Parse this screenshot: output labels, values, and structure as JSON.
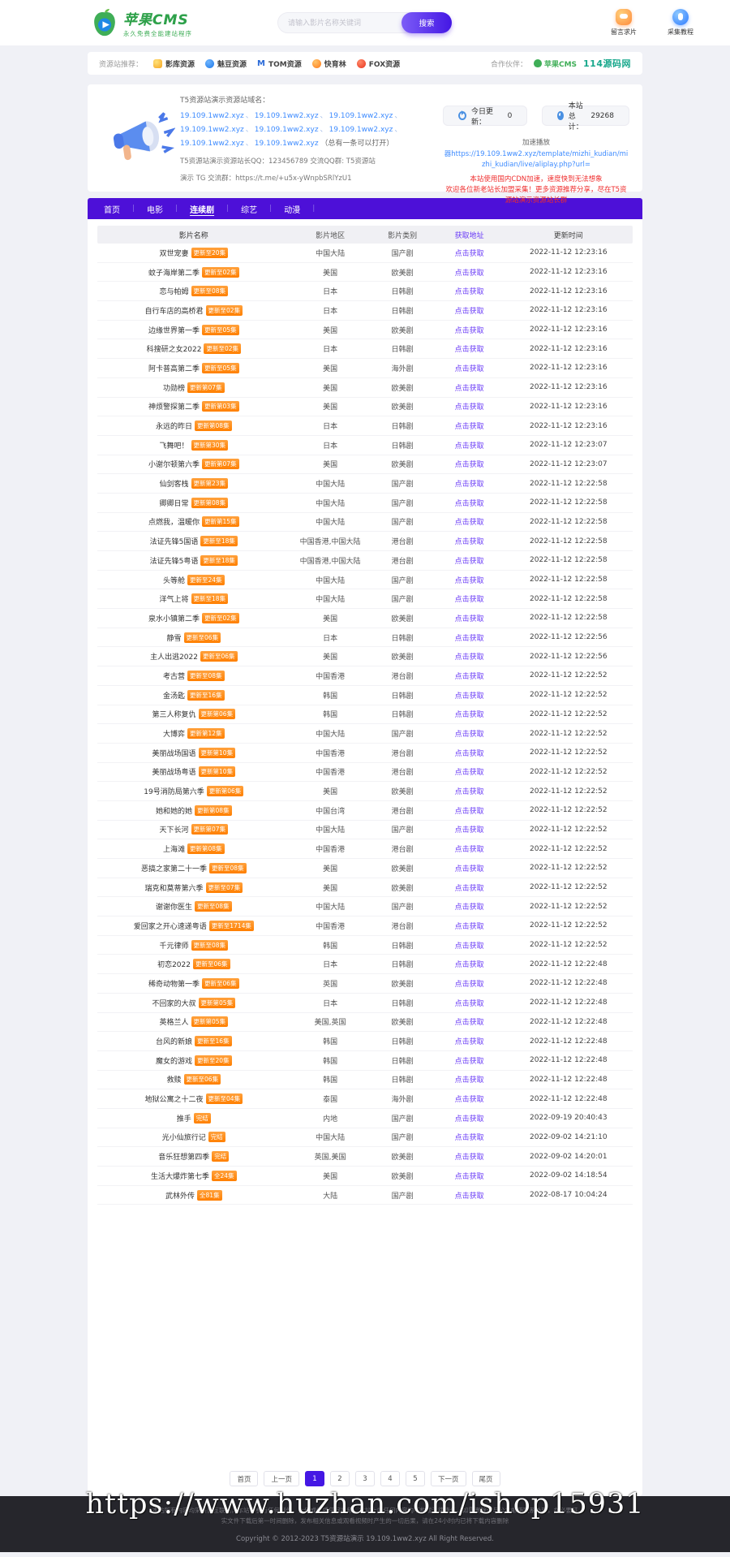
{
  "header": {
    "logo_title": "苹果CMS",
    "logo_subtitle": "永久免费全能建站程序",
    "search_placeholder": "请输入影片名称关键词",
    "search_button": "搜索",
    "quick_links": [
      {
        "label": "留言求片",
        "icon": "chat-bubble-icon"
      },
      {
        "label": "采集教程",
        "icon": "pin-icon"
      }
    ]
  },
  "partner_bar": {
    "recommend_label": "资源站推荐：",
    "partners": [
      {
        "name": "影库资源",
        "icon": "gold"
      },
      {
        "name": "魅豆资源",
        "icon": "bluedrop"
      },
      {
        "name": "TOM资源",
        "icon": "mlogo"
      },
      {
        "name": "快育林",
        "icon": "orange"
      },
      {
        "name": "FOX资源",
        "icon": "fox"
      }
    ],
    "cooperate_label": "合作伙伴：",
    "coop_logo": "苹果CMS",
    "coop_site": "114源码网"
  },
  "notice": {
    "title": "T5资源站演示资源站域名：",
    "domains": [
      "19.109.1ww2.xyz",
      "19.109.1ww2.xyz",
      "19.109.1ww2.xyz",
      "19.109.1ww2.xyz",
      "19.109.1ww2.xyz",
      "19.109.1ww2.xyz",
      "19.109.1ww2.xyz",
      "19.109.1ww2.xyz"
    ],
    "domains_suffix": "（总有一条可以打开）",
    "qq_line": "T5资源站演示资源站长QQ：123456789 交流QQ群: T5资源站",
    "tg_line": "演示 TG 交流群：https://t.me/+u5x-yWnpbSRlYzU1",
    "stats": [
      {
        "icon": "refresh-icon",
        "label": "今日更新：",
        "value": "0"
      },
      {
        "icon": "pie-icon",
        "label": "本站总计：",
        "value": "29268"
      }
    ],
    "speed_label": "加速播放",
    "player_link": "器https://19.109.1ww2.xyz/template/mizhi_kudian/mizhi_kudian/live/aliplay.php?url=",
    "warn1": "本站使用国内CDN加速，速度快到无法想象",
    "warn2": "欢迎各位新老站长加盟采集！更多资源推荐分享，尽在T5资源站演示资源站长群"
  },
  "nav": {
    "items": [
      {
        "label": "首页",
        "active": false
      },
      {
        "label": "电影",
        "active": false
      },
      {
        "label": "连续剧",
        "active": true
      },
      {
        "label": "综艺",
        "active": false
      },
      {
        "label": "动漫",
        "active": false
      }
    ]
  },
  "table": {
    "headers": [
      "影片名称",
      "影片地区",
      "影片类别",
      "获取地址",
      "更新时间"
    ],
    "link_label": "点击获取",
    "rows": [
      {
        "title": "双世宠妻",
        "badge": "更新至20集",
        "region": "中国大陆",
        "category": "国产剧",
        "time": "2022-11-12 12:23:16"
      },
      {
        "title": "蚊子海岸第二季",
        "badge": "更新至02集",
        "region": "美国",
        "category": "欧美剧",
        "time": "2022-11-12 12:23:16"
      },
      {
        "title": "恋与帕姆",
        "badge": "更新至08集",
        "region": "日本",
        "category": "日韩剧",
        "time": "2022-11-12 12:23:16"
      },
      {
        "title": "自行车店的高桥君",
        "badge": "更新至02集",
        "region": "日本",
        "category": "日韩剧",
        "time": "2022-11-12 12:23:16"
      },
      {
        "title": "边缘世界第一季",
        "badge": "更新至05集",
        "region": "美国",
        "category": "欧美剧",
        "time": "2022-11-12 12:23:16"
      },
      {
        "title": "科搜研之女2022",
        "badge": "更新至02集",
        "region": "日本",
        "category": "日韩剧",
        "time": "2022-11-12 12:23:16"
      },
      {
        "title": "阿卡普高第二季",
        "badge": "更新至05集",
        "region": "美国",
        "category": "海外剧",
        "time": "2022-11-12 12:23:16"
      },
      {
        "title": "功勋榜",
        "badge": "更新第07集",
        "region": "美国",
        "category": "欧美剧",
        "time": "2022-11-12 12:23:16"
      },
      {
        "title": "神烦警探第二季",
        "badge": "更新第03集",
        "region": "美国",
        "category": "欧美剧",
        "time": "2022-11-12 12:23:16"
      },
      {
        "title": "永远的昨日",
        "badge": "更新第08集",
        "region": "日本",
        "category": "日韩剧",
        "time": "2022-11-12 12:23:16"
      },
      {
        "title": "飞舞吧！",
        "badge": "更新第30集",
        "region": "日本",
        "category": "日韩剧",
        "time": "2022-11-12 12:23:07"
      },
      {
        "title": "小谢尔顿第六季",
        "badge": "更新第07集",
        "region": "美国",
        "category": "欧美剧",
        "time": "2022-11-12 12:23:07"
      },
      {
        "title": "仙剑客栈",
        "badge": "更新第23集",
        "region": "中国大陆",
        "category": "国产剧",
        "time": "2022-11-12 12:22:58"
      },
      {
        "title": "卿卿日常",
        "badge": "更新第08集",
        "region": "中国大陆",
        "category": "国产剧",
        "time": "2022-11-12 12:22:58"
      },
      {
        "title": "点燃我，温暖你",
        "badge": "更新第15集",
        "region": "中国大陆",
        "category": "国产剧",
        "time": "2022-11-12 12:22:58"
      },
      {
        "title": "法证先锋5国语",
        "badge": "更新至18集",
        "region": "中国香港,中国大陆",
        "category": "港台剧",
        "time": "2022-11-12 12:22:58"
      },
      {
        "title": "法证先锋5粤语",
        "badge": "更新至18集",
        "region": "中国香港,中国大陆",
        "category": "港台剧",
        "time": "2022-11-12 12:22:58"
      },
      {
        "title": "头等舱",
        "badge": "更新至24集",
        "region": "中国大陆",
        "category": "国产剧",
        "time": "2022-11-12 12:22:58"
      },
      {
        "title": "洋气上将",
        "badge": "更新至18集",
        "region": "中国大陆",
        "category": "国产剧",
        "time": "2022-11-12 12:22:58"
      },
      {
        "title": "泉水小镇第二季",
        "badge": "更新至02集",
        "region": "美国",
        "category": "欧美剧",
        "time": "2022-11-12 12:22:58"
      },
      {
        "title": "静雪",
        "badge": "更新至06集",
        "region": "日本",
        "category": "日韩剧",
        "time": "2022-11-12 12:22:56"
      },
      {
        "title": "主人出逃2022",
        "badge": "更新至06集",
        "region": "美国",
        "category": "欧美剧",
        "time": "2022-11-12 12:22:56"
      },
      {
        "title": "考古营",
        "badge": "更新至08集",
        "region": "中国香港",
        "category": "港台剧",
        "time": "2022-11-12 12:22:52"
      },
      {
        "title": "金汤匙",
        "badge": "更新至16集",
        "region": "韩国",
        "category": "日韩剧",
        "time": "2022-11-12 12:22:52"
      },
      {
        "title": "第三人称复仇",
        "badge": "更新第06集",
        "region": "韩国",
        "category": "日韩剧",
        "time": "2022-11-12 12:22:52"
      },
      {
        "title": "大博弈",
        "badge": "更新第12集",
        "region": "中国大陆",
        "category": "国产剧",
        "time": "2022-11-12 12:22:52"
      },
      {
        "title": "美丽战场国语",
        "badge": "更新第10集",
        "region": "中国香港",
        "category": "港台剧",
        "time": "2022-11-12 12:22:52"
      },
      {
        "title": "美丽战场粤语",
        "badge": "更新第10集",
        "region": "中国香港",
        "category": "港台剧",
        "time": "2022-11-12 12:22:52"
      },
      {
        "title": "19号消防局第六季",
        "badge": "更新第06集",
        "region": "美国",
        "category": "欧美剧",
        "time": "2022-11-12 12:22:52"
      },
      {
        "title": "她和她的她",
        "badge": "更新第08集",
        "region": "中国台湾",
        "category": "港台剧",
        "time": "2022-11-12 12:22:52"
      },
      {
        "title": "天下长河",
        "badge": "更新第07集",
        "region": "中国大陆",
        "category": "国产剧",
        "time": "2022-11-12 12:22:52"
      },
      {
        "title": "上海滩",
        "badge": "更新第08集",
        "region": "中国香港",
        "category": "港台剧",
        "time": "2022-11-12 12:22:52"
      },
      {
        "title": "恶搞之家第二十一季",
        "badge": "更新至08集",
        "region": "美国",
        "category": "欧美剧",
        "time": "2022-11-12 12:22:52"
      },
      {
        "title": "瑞克和莫蒂第六季",
        "badge": "更新至07集",
        "region": "美国",
        "category": "欧美剧",
        "time": "2022-11-12 12:22:52"
      },
      {
        "title": "谢谢你医生",
        "badge": "更新至08集",
        "region": "中国大陆",
        "category": "国产剧",
        "time": "2022-11-12 12:22:52"
      },
      {
        "title": "爱回家之开心速递粤语",
        "badge": "更新至1714集",
        "region": "中国香港",
        "category": "港台剧",
        "time": "2022-11-12 12:22:52"
      },
      {
        "title": "千元律师",
        "badge": "更新至08集",
        "region": "韩国",
        "category": "日韩剧",
        "time": "2022-11-12 12:22:52"
      },
      {
        "title": "初恋2022",
        "badge": "更新至06集",
        "region": "日本",
        "category": "日韩剧",
        "time": "2022-11-12 12:22:48"
      },
      {
        "title": "稀奇动物第一季",
        "badge": "更新至06集",
        "region": "英国",
        "category": "欧美剧",
        "time": "2022-11-12 12:22:48"
      },
      {
        "title": "不回家的大叔",
        "badge": "更新第05集",
        "region": "日本",
        "category": "日韩剧",
        "time": "2022-11-12 12:22:48"
      },
      {
        "title": "英格兰人",
        "badge": "更新第05集",
        "region": "美国,英国",
        "category": "欧美剧",
        "time": "2022-11-12 12:22:48"
      },
      {
        "title": "台风的新娘",
        "badge": "更新至16集",
        "region": "韩国",
        "category": "日韩剧",
        "time": "2022-11-12 12:22:48"
      },
      {
        "title": "魔女的游戏",
        "badge": "更新至20集",
        "region": "韩国",
        "category": "日韩剧",
        "time": "2022-11-12 12:22:48"
      },
      {
        "title": "救赎",
        "badge": "更新至06集",
        "region": "韩国",
        "category": "日韩剧",
        "time": "2022-11-12 12:22:48"
      },
      {
        "title": "地狱公寓之十二夜",
        "badge": "更新至04集",
        "region": "泰国",
        "category": "海外剧",
        "time": "2022-11-12 12:22:48"
      },
      {
        "title": "推手",
        "badge": "完结",
        "region": "内地",
        "category": "国产剧",
        "time": "2022-09-19 20:40:43"
      },
      {
        "title": "光小仙旅行记",
        "badge": "完结",
        "region": "中国大陆",
        "category": "国产剧",
        "time": "2022-09-02 14:21:10"
      },
      {
        "title": "音乐狂想第四季",
        "badge": "完结",
        "region": "英国,美国",
        "category": "欧美剧",
        "time": "2022-09-02 14:20:01"
      },
      {
        "title": "生活大爆炸第七季",
        "badge": "全24集",
        "region": "美国",
        "category": "欧美剧",
        "time": "2022-09-02 14:18:54"
      },
      {
        "title": "武林外传",
        "badge": "全81集",
        "region": "大陆",
        "category": "国产剧",
        "time": "2022-08-17 10:04:24"
      }
    ]
  },
  "pagination": {
    "items": [
      "首页",
      "上一页",
      "1",
      "2",
      "3",
      "4",
      "5",
      "下一页",
      "尾页"
    ],
    "active": "1"
  },
  "footer": {
    "line1": "本站所有内容均采集自互联网，本站不参与任何制作、上传或传播任何视频，本站上的任何内容均不构成法律责任，如需删除请与公共邮箱联系处理，在必要证",
    "line2": "实文件下载后第一时间删除，发布相关信息或观看视频时产生的一切后果，请在24小时内已将下载内容删除",
    "copyright": "Copyright © 2012-2023 T5资源站演示 19.109.1ww2.xyz All Right Reserved."
  },
  "watermark": "https://www.huzhan.com/ishop15931"
}
